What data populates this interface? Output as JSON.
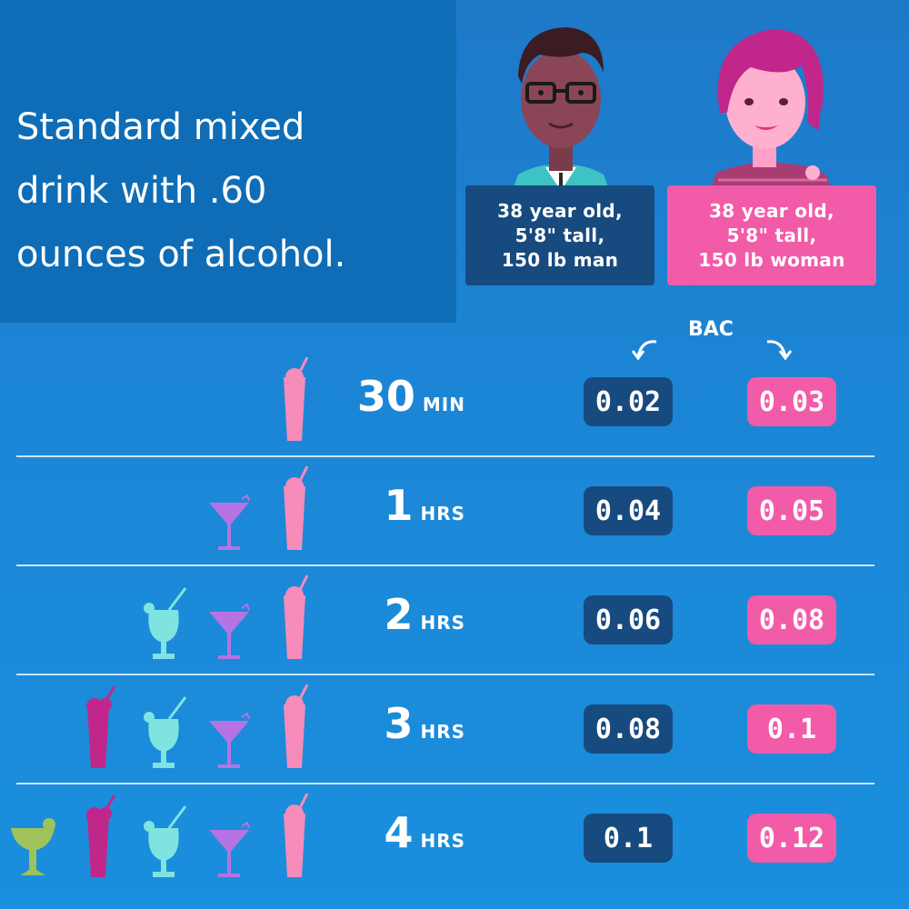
{
  "title": {
    "lines": [
      "Standard mixed",
      "drink with .60",
      "ounces of alcohol."
    ]
  },
  "profiles": {
    "man": {
      "lines": [
        "38 year old,",
        "5'8\" tall,",
        "150 lb man"
      ]
    },
    "woman": {
      "lines": [
        "38 year old,",
        "5'8\" tall,",
        "150 lb woman"
      ]
    }
  },
  "bac_label": "BAC",
  "colors": {
    "background": "#1c86d6",
    "man": "#174a7e",
    "woman": "#f25ba7",
    "divider": "#c9e6fb"
  },
  "rows": [
    {
      "time": "30",
      "unit": "MIN",
      "man_bac": "0.02",
      "woman_bac": "0.03",
      "drinks": [
        "pink-tall-glass-icon"
      ]
    },
    {
      "time": "1",
      "unit": "HRS",
      "man_bac": "0.04",
      "woman_bac": "0.05",
      "drinks": [
        "purple-martini-icon",
        "pink-tall-glass-icon"
      ]
    },
    {
      "time": "2",
      "unit": "HRS",
      "man_bac": "0.06",
      "woman_bac": "0.08",
      "drinks": [
        "teal-hurricane-glass-icon",
        "purple-martini-icon",
        "pink-tall-glass-icon"
      ]
    },
    {
      "time": "3",
      "unit": "HRS",
      "man_bac": "0.08",
      "woman_bac": "0.1",
      "drinks": [
        "magenta-tall-glass-icon",
        "teal-hurricane-glass-icon",
        "purple-martini-icon",
        "pink-tall-glass-icon"
      ]
    },
    {
      "time": "4",
      "unit": "HRS",
      "man_bac": "0.1",
      "woman_bac": "0.12",
      "drinks": [
        "green-margarita-icon",
        "magenta-tall-glass-icon",
        "teal-hurricane-glass-icon",
        "purple-martini-icon",
        "pink-tall-glass-icon"
      ]
    }
  ]
}
